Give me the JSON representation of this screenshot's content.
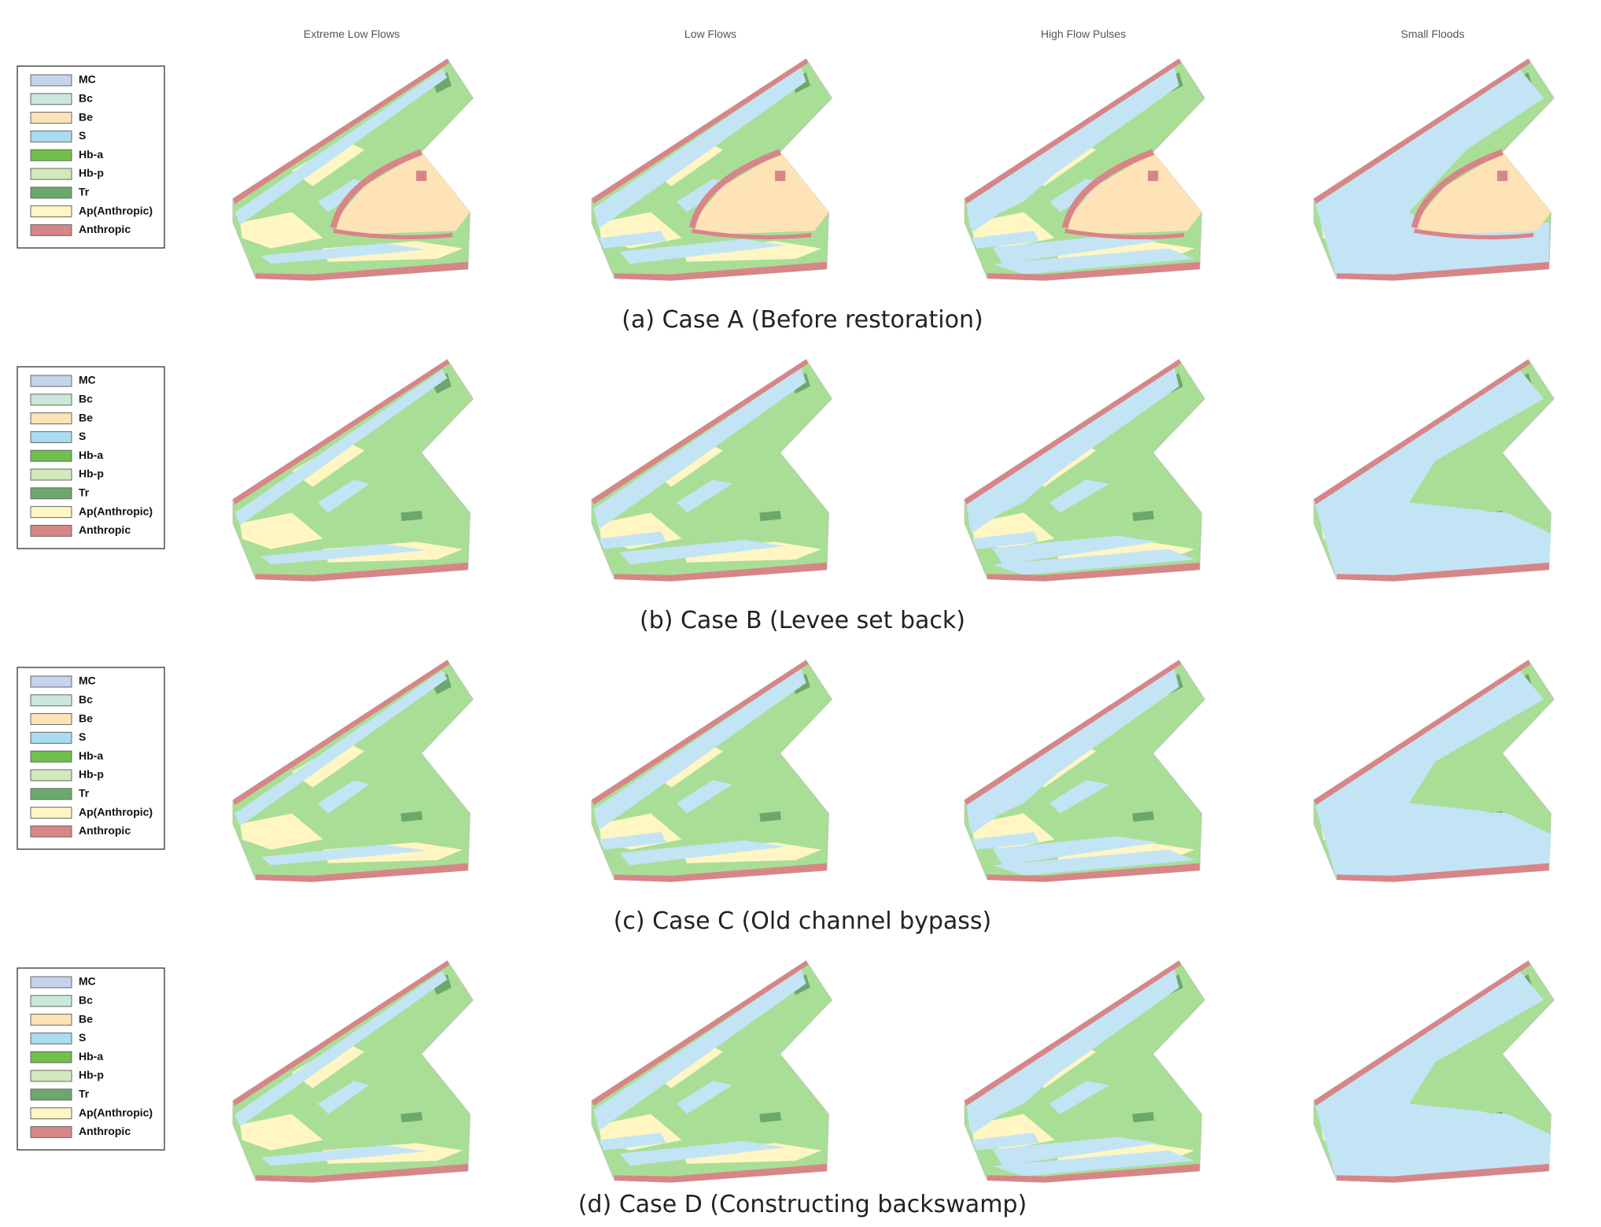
{
  "columns": [
    "Extreme Low Flows",
    "Low Flows",
    "High Flow Pulses",
    "Small Floods"
  ],
  "legend": [
    {
      "label": "MC",
      "color": "#c5d4ea"
    },
    {
      "label": "Bc",
      "color": "#c9e8da"
    },
    {
      "label": "Be",
      "color": "#fde3b6"
    },
    {
      "label": "S",
      "color": "#a9dcef"
    },
    {
      "label": "Hb-a",
      "color": "#71bf4c"
    },
    {
      "label": "Hb-p",
      "color": "#d3e8bd"
    },
    {
      "label": "Tr",
      "color": "#6ca86c"
    },
    {
      "label": "Ap(Anthropic)",
      "color": "#fff6c4"
    },
    {
      "label": "Anthropic",
      "color": "#d88588"
    }
  ],
  "rows": [
    {
      "caption": "(a) Case A (Before restoration)"
    },
    {
      "caption": "(b) Case B (Levee set back)"
    },
    {
      "caption": "(c) Case C (Old channel bypass)"
    },
    {
      "caption": "(d) Case D (Constructing backswamp)"
    }
  ]
}
